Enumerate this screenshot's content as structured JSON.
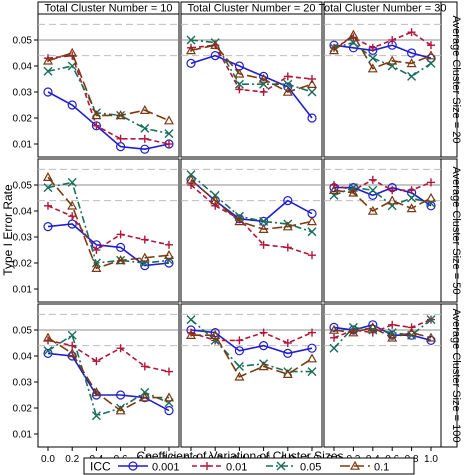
{
  "chart_data": {
    "type": "line",
    "ylabel": "Type I Error Rate",
    "xlabel": "Coefficient of Variation of Cluster Sizes",
    "x": [
      0.0,
      0.2,
      0.4,
      0.6,
      0.8,
      1.0
    ],
    "x_tick_labels": [
      "0.0",
      "0.2",
      "0.4",
      "0.6",
      "0.8",
      "1.0"
    ],
    "ylim": [
      0.005,
      0.06
    ],
    "y_ticks": [
      0.01,
      0.02,
      0.03,
      0.04,
      0.05
    ],
    "y_tick_labels": [
      "0.01",
      "0.02",
      "0.03",
      "0.04",
      "0.05"
    ],
    "reference_lines": {
      "solid": 0.05,
      "dashed": [
        0.044,
        0.056
      ]
    },
    "column_headers": [
      "Total Cluster Number = 10",
      "Total Cluster Number = 20",
      "Total Cluster Number = 30"
    ],
    "row_headers": [
      "Average Cluster Size = 20",
      "Average Cluster Size = 50",
      "Average Cluster Size = 100"
    ],
    "legend": {
      "title": "ICC",
      "position": "bottom",
      "entries": [
        "0.001",
        "0.01",
        "0.05",
        "0.1"
      ]
    },
    "series_styles": [
      {
        "name": "0.001",
        "color": "#1f1fcf",
        "marker": "circle",
        "dash": "solid"
      },
      {
        "name": "0.01",
        "color": "#b0173a",
        "marker": "plus",
        "dash": "dashed"
      },
      {
        "name": "0.05",
        "color": "#1a6e5a",
        "marker": "x",
        "dash": "dashdot"
      },
      {
        "name": "0.1",
        "color": "#7a3a12",
        "marker": "triangle",
        "dash": "longdash"
      }
    ],
    "panels": [
      {
        "row": 0,
        "col": 0,
        "series": [
          [
            0.03,
            0.025,
            0.017,
            0.009,
            0.008,
            0.01
          ],
          [
            0.043,
            0.044,
            0.017,
            0.012,
            0.012,
            0.01
          ],
          [
            0.038,
            0.04,
            0.022,
            0.021,
            0.016,
            0.014
          ],
          [
            0.042,
            0.045,
            0.021,
            0.021,
            0.023,
            0.019
          ]
        ]
      },
      {
        "row": 0,
        "col": 1,
        "series": [
          [
            0.041,
            0.044,
            0.04,
            0.036,
            0.032,
            0.02
          ],
          [
            0.047,
            0.048,
            0.031,
            0.03,
            0.036,
            0.035
          ],
          [
            0.05,
            0.049,
            0.033,
            0.033,
            0.033,
            0.03
          ],
          [
            0.046,
            0.048,
            0.037,
            0.035,
            0.03,
            0.033
          ]
        ]
      },
      {
        "row": 0,
        "col": 2,
        "series": [
          [
            0.048,
            0.047,
            0.046,
            0.048,
            0.045,
            0.043
          ],
          [
            0.047,
            0.051,
            0.047,
            0.05,
            0.053,
            0.048
          ],
          [
            0.047,
            0.049,
            0.043,
            0.04,
            0.036,
            0.041
          ],
          [
            0.046,
            0.052,
            0.039,
            0.042,
            0.041,
            0.044
          ]
        ]
      },
      {
        "row": 1,
        "col": 0,
        "series": [
          [
            0.034,
            0.035,
            0.027,
            0.026,
            0.019,
            0.02
          ],
          [
            0.042,
            0.038,
            0.025,
            0.031,
            0.029,
            0.027
          ],
          [
            0.049,
            0.051,
            0.02,
            0.021,
            0.02,
            0.021
          ],
          [
            0.053,
            0.042,
            0.018,
            0.021,
            0.022,
            0.023
          ]
        ]
      },
      {
        "row": 1,
        "col": 1,
        "series": [
          [
            0.052,
            0.044,
            0.037,
            0.036,
            0.044,
            0.039
          ],
          [
            0.05,
            0.042,
            0.037,
            0.027,
            0.026,
            0.023
          ],
          [
            0.054,
            0.046,
            0.038,
            0.036,
            0.035,
            0.032
          ],
          [
            0.052,
            0.044,
            0.036,
            0.033,
            0.034,
            0.036
          ]
        ]
      },
      {
        "row": 1,
        "col": 2,
        "series": [
          [
            0.049,
            0.049,
            0.046,
            0.049,
            0.047,
            0.042
          ],
          [
            0.05,
            0.048,
            0.052,
            0.048,
            0.048,
            0.051
          ],
          [
            0.046,
            0.049,
            0.048,
            0.042,
            0.045,
            0.043
          ],
          [
            0.048,
            0.047,
            0.04,
            0.044,
            0.041,
            0.045
          ]
        ]
      },
      {
        "row": 2,
        "col": 0,
        "series": [
          [
            0.041,
            0.04,
            0.025,
            0.025,
            0.024,
            0.019
          ],
          [
            0.046,
            0.044,
            0.038,
            0.043,
            0.036,
            0.034
          ],
          [
            0.042,
            0.048,
            0.017,
            0.02,
            0.026,
            0.022
          ],
          [
            0.047,
            0.041,
            0.026,
            0.019,
            0.024,
            0.024
          ]
        ]
      },
      {
        "row": 2,
        "col": 1,
        "series": [
          [
            0.05,
            0.049,
            0.042,
            0.044,
            0.041,
            0.043
          ],
          [
            0.049,
            0.046,
            0.046,
            0.049,
            0.045,
            0.049
          ],
          [
            0.054,
            0.046,
            0.036,
            0.037,
            0.034,
            0.034
          ],
          [
            0.048,
            0.048,
            0.032,
            0.036,
            0.033,
            0.039
          ]
        ]
      },
      {
        "row": 2,
        "col": 2,
        "series": [
          [
            0.051,
            0.05,
            0.052,
            0.048,
            0.048,
            0.046
          ],
          [
            0.047,
            0.05,
            0.049,
            0.052,
            0.051,
            0.054
          ],
          [
            0.043,
            0.051,
            0.05,
            0.049,
            0.048,
            0.054
          ],
          [
            0.05,
            0.049,
            0.051,
            0.047,
            0.049,
            0.047
          ]
        ]
      }
    ]
  }
}
